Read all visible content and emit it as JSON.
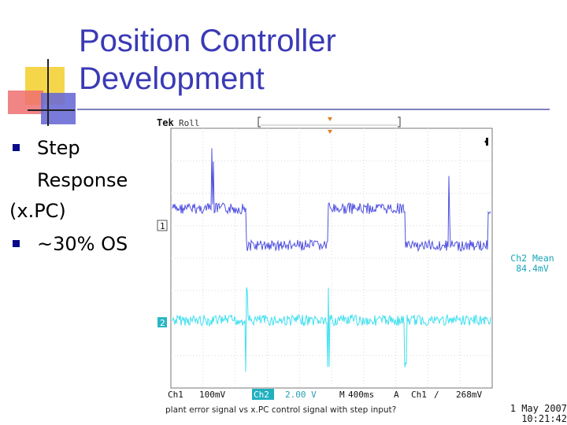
{
  "slide": {
    "title_line1": "Position Controller",
    "title_line2": "Development",
    "bullets": [
      {
        "line1": "Step",
        "line2": "Response",
        "line3": "(x.PC)"
      },
      {
        "line1": "~30% OS"
      }
    ]
  },
  "scope": {
    "brand": "Tek",
    "mode": "Roll",
    "ch1_marker": "1",
    "ch2_marker": "2",
    "status_bar": {
      "ch1_label": "Ch1",
      "ch1_scale": "100mV",
      "ch2_label": "Ch2",
      "ch2_scale": "2.00 V",
      "time_label": "M",
      "time_scale": "400ms",
      "trigger_label": "A",
      "trigger_source": "Ch1",
      "trigger_slope": "∕",
      "trigger_level": "268mV"
    },
    "measurement_title": "Ch2 Mean",
    "measurement_value": "84.4mV",
    "date": "1 May 2007",
    "time": "10:21:42",
    "caption": "plant error signal vs x.PC control signal with step input?"
  },
  "colors": {
    "title": "#3a3ab5",
    "ch1_trace": "#5050e0",
    "ch2_trace": "#40e0f0",
    "measurement": "#1aa6b5",
    "status_ch2_bg": "#20b0c0"
  }
}
